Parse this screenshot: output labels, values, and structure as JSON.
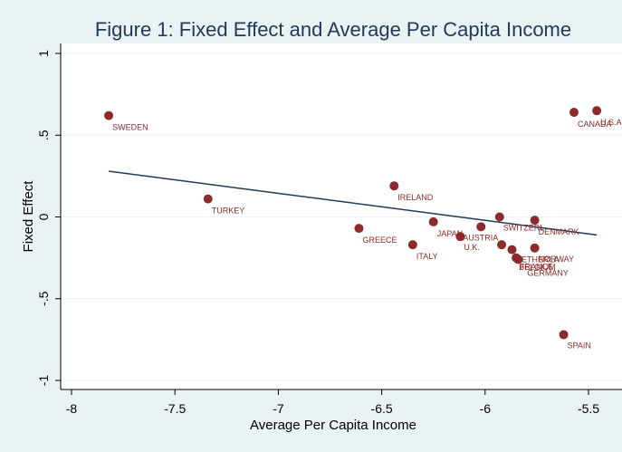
{
  "chart_data": {
    "type": "scatter",
    "title": "Figure 1: Fixed Effect and Average Per Capita Income",
    "xlabel": "Average Per Capita Income",
    "ylabel": "Fixed Effect",
    "xlim": [
      -8,
      -5.45
    ],
    "ylim": [
      -1,
      1
    ],
    "xticks": [
      "-8",
      "-7.5",
      "-7",
      "-6.5",
      "-6",
      "-5.5"
    ],
    "yticks": [
      "1",
      ".5",
      "0",
      "-.5",
      "-1"
    ],
    "grid": true,
    "colors": {
      "point": "#8c2b2b",
      "fit_line": "#1e3b5a",
      "plot_background": "#ffffff",
      "page_background": "#eaf2f3",
      "title": "#1e3b5a"
    },
    "series": [
      {
        "type": "scatter",
        "points": [
          {
            "label": "SWEDEN",
            "x": -7.82,
            "y": 0.62
          },
          {
            "label": "TURKEY",
            "x": -7.34,
            "y": 0.11
          },
          {
            "label": "GREECE",
            "x": -6.61,
            "y": -0.07
          },
          {
            "label": "IRELAND",
            "x": -6.44,
            "y": 0.19
          },
          {
            "label": "ITALY",
            "x": -6.35,
            "y": -0.17
          },
          {
            "label": "JAPAN",
            "x": -6.25,
            "y": -0.03
          },
          {
            "label": "U.K.",
            "x": -6.12,
            "y": -0.12
          },
          {
            "label": "AUSTRIA",
            "x": -6.02,
            "y": -0.06
          },
          {
            "label": "SWITZERL",
            "x": -5.93,
            "y": 0.0
          },
          {
            "label": "BELGIUM",
            "x": -5.92,
            "y": -0.17
          },
          {
            "label": "NETHERLA",
            "x": -5.87,
            "y": -0.2
          },
          {
            "label": "FRANCE",
            "x": -5.85,
            "y": -0.25
          },
          {
            "label": "DENMARK",
            "x": -5.76,
            "y": -0.02
          },
          {
            "label": "NORWAY",
            "x": -5.76,
            "y": -0.19
          },
          {
            "label": "GERMANY",
            "x": -5.84,
            "y": -0.26
          },
          {
            "label": "SPAIN",
            "x": -5.62,
            "y": -0.72
          },
          {
            "label": "CANADA",
            "x": -5.57,
            "y": 0.64
          },
          {
            "label": "U.S.A",
            "x": -5.46,
            "y": 0.65
          }
        ]
      },
      {
        "type": "line",
        "points": [
          {
            "x": -7.82,
            "y": 0.28
          },
          {
            "x": -5.46,
            "y": -0.11
          }
        ]
      }
    ]
  }
}
